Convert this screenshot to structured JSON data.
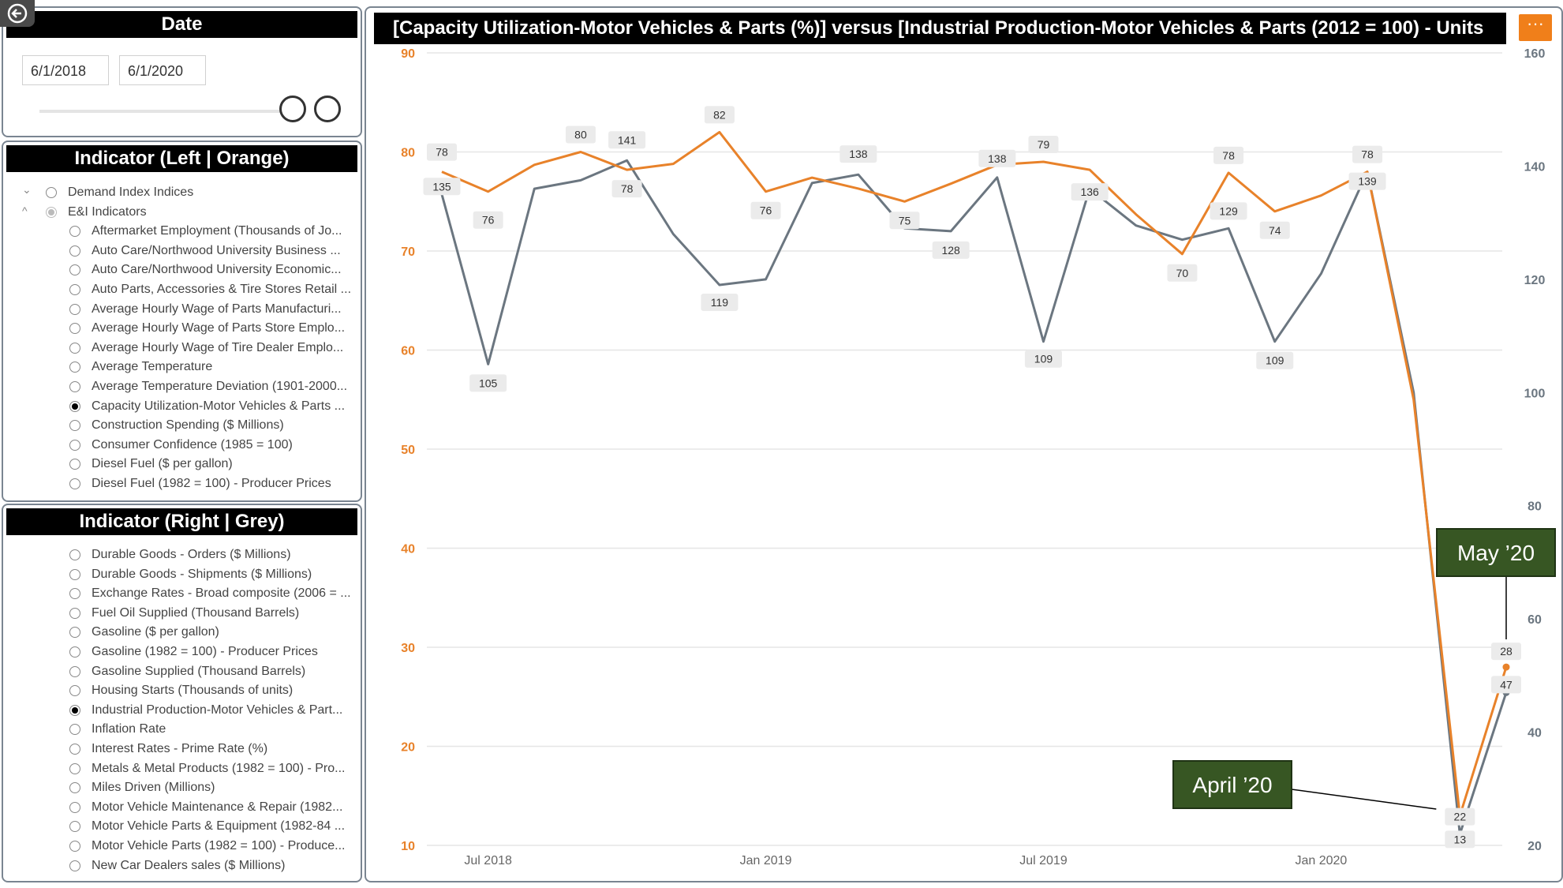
{
  "date_panel": {
    "title": "Date",
    "start_date": "6/1/2018",
    "end_date": "6/1/2020"
  },
  "left_panel": {
    "title": "Indicator (Left | Orange)",
    "groups": [
      {
        "label": "Demand Index Indices",
        "expanded": false
      },
      {
        "label": "E&I Indicators",
        "expanded": true
      }
    ],
    "items": [
      {
        "label": "Aftermarket Employment (Thousands of Jo...",
        "selected": false
      },
      {
        "label": "Auto Care/Northwood University Business ...",
        "selected": false
      },
      {
        "label": "Auto Care/Northwood University Economic...",
        "selected": false
      },
      {
        "label": "Auto Parts, Accessories & Tire Stores Retail ...",
        "selected": false
      },
      {
        "label": "Average Hourly Wage of Parts Manufacturi...",
        "selected": false
      },
      {
        "label": "Average Hourly Wage of Parts Store Emplo...",
        "selected": false
      },
      {
        "label": "Average Hourly Wage of Tire Dealer Emplo...",
        "selected": false
      },
      {
        "label": "Average Temperature",
        "selected": false
      },
      {
        "label": "Average Temperature Deviation (1901-2000...",
        "selected": false
      },
      {
        "label": "Capacity Utilization-Motor Vehicles & Parts ...",
        "selected": true
      },
      {
        "label": "Construction Spending ($ Millions)",
        "selected": false
      },
      {
        "label": "Consumer Confidence (1985 = 100)",
        "selected": false
      },
      {
        "label": "Diesel Fuel ($ per gallon)",
        "selected": false
      },
      {
        "label": "Diesel Fuel (1982 = 100) - Producer Prices",
        "selected": false
      }
    ]
  },
  "right_panel": {
    "title": "Indicator (Right | Grey)",
    "items": [
      {
        "label": "Durable Goods - Orders ($ Millions)",
        "selected": false
      },
      {
        "label": "Durable Goods - Shipments ($ Millions)",
        "selected": false
      },
      {
        "label": "Exchange Rates - Broad composite (2006 = ...",
        "selected": false
      },
      {
        "label": "Fuel Oil Supplied (Thousand Barrels)",
        "selected": false
      },
      {
        "label": "Gasoline ($ per gallon)",
        "selected": false
      },
      {
        "label": "Gasoline (1982 = 100) - Producer Prices",
        "selected": false
      },
      {
        "label": "Gasoline Supplied (Thousand Barrels)",
        "selected": false
      },
      {
        "label": "Housing Starts (Thousands of units)",
        "selected": false
      },
      {
        "label": "Industrial Production-Motor Vehicles & Part...",
        "selected": true
      },
      {
        "label": "Inflation Rate",
        "selected": false
      },
      {
        "label": "Interest Rates - Prime Rate (%)",
        "selected": false
      },
      {
        "label": "Metals & Metal Products (1982 = 100) - Pro...",
        "selected": false
      },
      {
        "label": "Miles Driven (Millions)",
        "selected": false
      },
      {
        "label": "Motor Vehicle Maintenance & Repair (1982...",
        "selected": false
      },
      {
        "label": "Motor Vehicle Parts & Equipment (1982-84 ...",
        "selected": false
      },
      {
        "label": "Motor Vehicle Parts (1982 = 100) - Produce...",
        "selected": false
      },
      {
        "label": "New Car Dealers sales ($ Millions)",
        "selected": false
      }
    ]
  },
  "chart_data": {
    "type": "line",
    "title": "[Capacity Utilization-Motor Vehicles & Parts (%)]  versus  [Industrial Production-Motor Vehicles & Parts (2012 = 100) - Units",
    "x": [
      "2018-06",
      "2018-07",
      "2018-08",
      "2018-09",
      "2018-10",
      "2018-11",
      "2018-12",
      "2019-01",
      "2019-02",
      "2019-03",
      "2019-04",
      "2019-05",
      "2019-06",
      "2019-07",
      "2019-08",
      "2019-09",
      "2019-10",
      "2019-11",
      "2019-12",
      "2020-01",
      "2020-02",
      "2020-03",
      "2020-04",
      "2020-05"
    ],
    "x_tick_labels": [
      "Jul 2018",
      "Jan 2019",
      "Jul 2019",
      "Jan 2020"
    ],
    "x_tick_index": [
      1,
      7,
      13,
      19
    ],
    "left_axis": {
      "ylim": [
        10,
        90
      ],
      "ticks": [
        10,
        20,
        30,
        40,
        50,
        60,
        70,
        80,
        90
      ],
      "color": "#e8822a"
    },
    "right_axis": {
      "ylim": [
        20,
        160
      ],
      "ticks": [
        20,
        40,
        60,
        80,
        100,
        120,
        140,
        160
      ],
      "color": "#6b7680"
    },
    "series": [
      {
        "axis": "left",
        "color": "#e8822a",
        "values": [
          78,
          76,
          78.7,
          80,
          78.2,
          78.8,
          82,
          76,
          77.4,
          76.3,
          75,
          76.8,
          78.7,
          79,
          78.2,
          73.7,
          69.7,
          77.9,
          74,
          75.6,
          78,
          55,
          13,
          28
        ],
        "labels": {
          "0": "78",
          "1": "76",
          "3": "80",
          "4": "78",
          "6": "82",
          "7": "76",
          "10": "75",
          "13": "79",
          "16": "70",
          "17": "78",
          "18": "74",
          "20": "78",
          "22": "13",
          "23": "28"
        }
      },
      {
        "axis": "right",
        "color": "#6b7680",
        "values": [
          135,
          105,
          136,
          137.5,
          141,
          128,
          119,
          120,
          137,
          138.5,
          129,
          128.5,
          138,
          109,
          136,
          129.5,
          127,
          129,
          109,
          121,
          139,
          100,
          22,
          47
        ],
        "labels": {
          "0": "135",
          "1": "105",
          "4": "141",
          "6": "119",
          "9": "138",
          "11": "128",
          "12": "138",
          "13": "109",
          "14": "136",
          "17": "129",
          "18": "109",
          "20": "139",
          "22": "22",
          "23": "47"
        }
      }
    ],
    "annotations": [
      {
        "text": "April ’20",
        "point_index": 22
      },
      {
        "text": "May ’20",
        "point_index": 23
      }
    ],
    "grid": true
  }
}
